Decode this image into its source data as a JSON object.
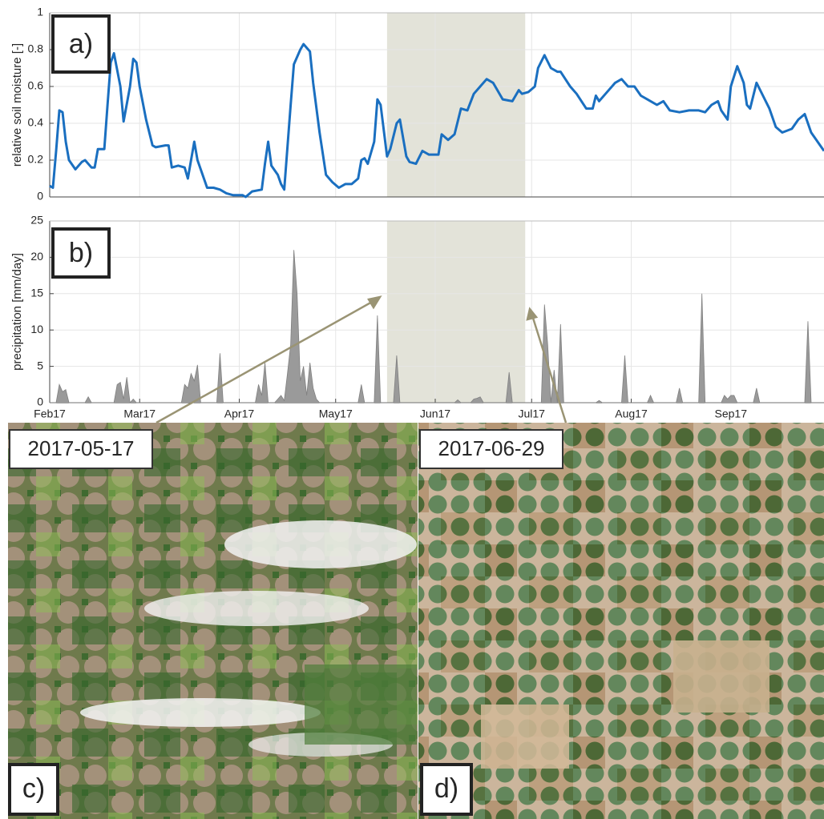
{
  "chart_data": [
    {
      "type": "line",
      "panel_label": "a)",
      "y_label": "relative soil moisture [-]",
      "x": [
        0,
        1,
        2,
        3,
        4,
        5,
        6,
        8,
        10,
        11,
        13,
        14,
        15,
        17,
        18,
        19,
        20,
        22,
        23,
        25,
        26,
        27,
        28,
        30,
        32,
        33,
        36,
        37,
        38,
        40,
        42,
        43,
        44,
        45,
        46,
        48,
        49,
        51,
        53,
        55,
        57,
        60,
        61,
        63,
        66,
        67,
        68,
        69,
        71,
        72,
        73,
        75,
        76,
        78,
        79,
        81,
        82,
        84,
        86,
        88,
        90,
        92,
        94,
        96,
        97,
        98,
        99,
        101,
        102,
        103,
        105,
        106,
        108,
        109,
        111,
        112,
        114,
        116,
        118,
        121,
        122,
        124,
        126,
        128,
        130,
        132,
        134,
        136,
        138,
        139,
        141,
        144,
        146,
        147,
        149,
        151,
        152,
        154,
        156,
        158,
        159,
        162,
        164,
        167,
        169,
        170,
        171,
        173,
        176,
        178,
        180,
        182,
        184,
        186,
        189,
        191,
        193,
        196,
        199,
        202,
        204,
        206,
        208,
        209,
        211,
        212,
        214,
        216,
        217,
        218,
        220,
        222,
        224,
        226,
        228,
        231,
        233,
        235,
        237,
        239,
        241
      ],
      "series": [
        {
          "color": "#1a6fc0",
          "values": [
            0.06,
            0.05,
            0.25,
            0.47,
            0.46,
            0.3,
            0.2,
            0.15,
            0.19,
            0.2,
            0.16,
            0.16,
            0.26,
            0.26,
            0.5,
            0.73,
            0.78,
            0.6,
            0.41,
            0.6,
            0.75,
            0.73,
            0.6,
            0.42,
            0.28,
            0.27,
            0.28,
            0.28,
            0.16,
            0.17,
            0.16,
            0.1,
            0.2,
            0.3,
            0.2,
            0.1,
            0.05,
            0.05,
            0.04,
            0.02,
            0.01,
            0.01,
            0.0,
            0.03,
            0.04,
            0.18,
            0.3,
            0.17,
            0.12,
            0.07,
            0.04,
            0.5,
            0.72,
            0.8,
            0.83,
            0.79,
            0.62,
            0.35,
            0.12,
            0.08,
            0.05,
            0.07,
            0.07,
            0.1,
            0.2,
            0.21,
            0.18,
            0.3,
            0.53,
            0.5,
            0.22,
            0.26,
            0.4,
            0.42,
            0.22,
            0.19,
            0.18,
            0.25,
            0.23,
            0.23,
            0.34,
            0.31,
            0.34,
            0.48,
            0.47,
            0.56,
            0.6,
            0.64,
            0.62,
            0.59,
            0.53,
            0.52,
            0.58,
            0.56,
            0.57,
            0.6,
            0.7,
            0.77,
            0.7,
            0.68,
            0.68,
            0.6,
            0.56,
            0.48,
            0.48,
            0.55,
            0.52,
            0.56,
            0.62,
            0.64,
            0.6,
            0.6,
            0.55,
            0.53,
            0.5,
            0.52,
            0.47,
            0.46,
            0.47,
            0.47,
            0.46,
            0.5,
            0.52,
            0.47,
            0.42,
            0.6,
            0.71,
            0.62,
            0.5,
            0.48,
            0.62,
            0.55,
            0.48,
            0.38,
            0.35,
            0.37,
            0.42,
            0.45,
            0.35,
            0.3,
            0.25
          ]
        }
      ],
      "xlim": [
        0,
        241
      ],
      "ylim": [
        0,
        1
      ],
      "yticks": [
        0,
        0.2,
        0.4,
        0.6,
        0.8,
        1
      ],
      "highlight": [
        105,
        148
      ],
      "grid": true
    },
    {
      "type": "area",
      "panel_label": "b)",
      "y_label": "precipitation [mm/day]",
      "x": [
        0,
        2,
        3,
        4,
        5,
        6,
        11,
        12,
        13,
        20,
        21,
        22,
        23,
        24,
        25,
        26,
        27,
        41,
        42,
        43,
        44,
        45,
        46,
        47,
        52,
        53,
        54,
        64,
        65,
        66,
        67,
        68,
        70,
        71,
        72,
        73,
        74,
        75,
        76,
        77,
        78,
        79,
        80,
        81,
        82,
        83,
        84,
        96,
        97,
        98,
        101,
        102,
        103,
        107,
        108,
        109,
        126,
        127,
        128,
        131,
        132,
        133,
        134,
        135,
        142,
        143,
        144,
        153,
        154,
        155,
        156,
        157,
        158,
        159,
        160,
        170,
        171,
        172,
        178,
        179,
        180,
        186,
        187,
        188,
        195,
        196,
        197,
        202,
        203,
        204,
        209,
        210,
        211,
        212,
        213,
        214,
        219,
        220,
        221,
        235,
        236,
        237,
        241
      ],
      "series": [
        {
          "color": "#9a9a9a",
          "values": [
            0,
            0,
            2.5,
            1.5,
            1.8,
            0,
            0,
            0.8,
            0,
            0,
            2.5,
            2.8,
            0.5,
            3.5,
            0,
            0.5,
            0,
            0,
            2.5,
            2,
            4,
            3,
            5.2,
            0,
            0,
            6.8,
            0,
            0,
            2.5,
            1,
            5.5,
            0,
            0,
            0.5,
            1,
            0.3,
            4,
            8,
            21,
            15,
            3,
            5,
            1,
            5.5,
            2,
            0.5,
            0,
            0,
            2.5,
            0,
            0,
            12,
            0,
            0,
            6.5,
            0,
            0,
            0.4,
            0,
            0,
            0.5,
            0.6,
            0.8,
            0,
            0,
            4.2,
            0,
            0,
            13.5,
            8,
            0,
            4.5,
            0,
            10.8,
            0,
            0,
            0.3,
            0,
            0,
            6.5,
            0,
            0,
            1,
            0,
            0,
            2,
            0,
            0,
            15,
            0,
            0,
            1,
            0.5,
            1,
            1,
            0,
            0,
            2,
            0,
            0,
            11.2,
            0,
            0
          ]
        }
      ],
      "xlim": [
        0,
        241
      ],
      "ylim": [
        0,
        25
      ],
      "yticks": [
        0,
        5,
        10,
        15,
        20,
        25
      ],
      "xticks": [
        {
          "value": 0,
          "label": "Feb17"
        },
        {
          "value": 28,
          "label": "Mar17"
        },
        {
          "value": 59,
          "label": "Apr17"
        },
        {
          "value": 89,
          "label": "May17"
        },
        {
          "value": 120,
          "label": "Jun17"
        },
        {
          "value": 150,
          "label": "Jul17"
        },
        {
          "value": 181,
          "label": "Aug17"
        },
        {
          "value": 212,
          "label": "Sep17"
        }
      ],
      "highlight": [
        105,
        148
      ],
      "grid": true
    }
  ],
  "images": [
    {
      "date_label": "2017-05-17",
      "panel_label": "c)"
    },
    {
      "date_label": "2017-06-29",
      "panel_label": "d)"
    }
  ]
}
